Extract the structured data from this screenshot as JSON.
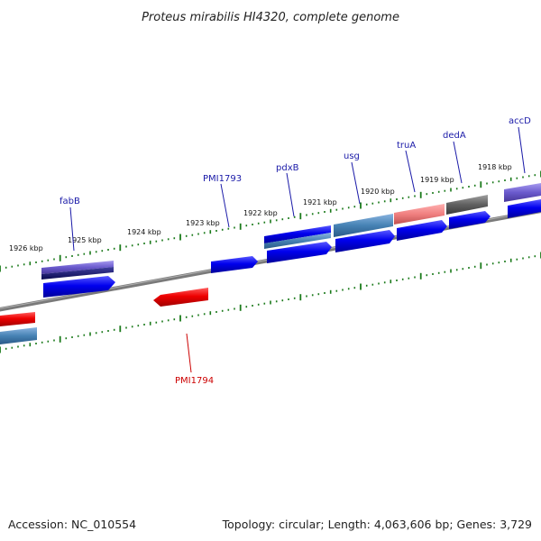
{
  "title": "Proteus mirabilis HI4320, complete genome",
  "footer": {
    "accession": "Accession: NC_010554",
    "topology": "Topology: circular; Length: 4,063,606 bp; Genes: 3,729"
  },
  "colors": {
    "forward_gene": "#0000ee",
    "reverse_gene": "#ee0000",
    "label_forward": "#1a1aa8",
    "label_reverse": "#cc0000",
    "backbone": "#808080",
    "tick": "#1a7a1a"
  },
  "scale_labels": [
    "1926 kbp",
    "1925 kbp",
    "1924 kbp",
    "1923 kbp",
    "1922 kbp",
    "1921 kbp",
    "1920 kbp",
    "1919 kbp",
    "1918 kbp"
  ],
  "gene_labels": [
    {
      "name": "fabB",
      "strand": "forward"
    },
    {
      "name": "PMI1793",
      "strand": "forward"
    },
    {
      "name": "pdxB",
      "strand": "forward"
    },
    {
      "name": "usg",
      "strand": "forward"
    },
    {
      "name": "truA",
      "strand": "forward"
    },
    {
      "name": "dedA",
      "strand": "forward"
    },
    {
      "name": "accD",
      "strand": "forward"
    },
    {
      "name": "PMI1794",
      "strand": "reverse"
    }
  ]
}
